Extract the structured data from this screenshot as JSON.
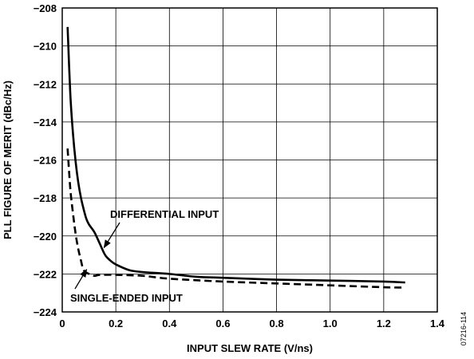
{
  "chart_data": {
    "type": "line",
    "xlabel": "INPUT SLEW RATE (V/ns)",
    "ylabel": "PLL FIGURE OF MERIT (dBc/Hz)",
    "xlim": [
      0,
      1.4
    ],
    "ylim": [
      -224,
      -208
    ],
    "xticks": [
      0,
      0.2,
      0.4,
      0.6,
      0.8,
      1.0,
      1.2,
      1.4
    ],
    "xtick_labels": [
      "0",
      "0.2",
      "0.4",
      "0.6",
      "0.8",
      "1.0",
      "1.2",
      "1.4"
    ],
    "yticks": [
      -224,
      -222,
      -220,
      -218,
      -216,
      -214,
      -212,
      -210,
      -208
    ],
    "ytick_labels": [
      "−224",
      "−222",
      "−220",
      "−218",
      "−216",
      "−214",
      "−212",
      "−210",
      "−208"
    ],
    "grid": true,
    "series": [
      {
        "name": "DIFFERENTIAL INPUT",
        "style": "solid",
        "color": "#000000",
        "x": [
          0.02,
          0.03,
          0.04,
          0.05,
          0.06,
          0.07,
          0.08,
          0.09,
          0.1,
          0.12,
          0.14,
          0.16,
          0.18,
          0.2,
          0.25,
          0.3,
          0.4,
          0.5,
          0.6,
          0.8,
          1.0,
          1.2,
          1.28
        ],
        "y": [
          -209.0,
          -212.5,
          -214.6,
          -216.1,
          -217.2,
          -218.0,
          -218.6,
          -219.1,
          -219.4,
          -219.8,
          -220.4,
          -221.0,
          -221.3,
          -221.5,
          -221.8,
          -221.9,
          -222.0,
          -222.15,
          -222.2,
          -222.3,
          -222.35,
          -222.4,
          -222.45
        ]
      },
      {
        "name": "SINGLE-ENDED INPUT",
        "style": "dashed",
        "color": "#000000",
        "x": [
          0.02,
          0.03,
          0.04,
          0.05,
          0.06,
          0.07,
          0.08,
          0.1,
          0.12,
          0.14,
          0.2,
          0.3,
          0.4,
          0.6,
          0.8,
          1.0,
          1.2,
          1.28
        ],
        "y": [
          -215.4,
          -217.5,
          -218.8,
          -219.9,
          -220.7,
          -221.3,
          -221.8,
          -222.0,
          -222.1,
          -222.05,
          -222.05,
          -222.1,
          -222.25,
          -222.4,
          -222.5,
          -222.6,
          -222.7,
          -222.72
        ]
      }
    ],
    "annotations": [
      {
        "text": "DIFFERENTIAL INPUT",
        "arrow_to": [
          0.15,
          -220.7
        ]
      },
      {
        "text": "SINGLE-ENDED INPUT",
        "arrow_to": [
          0.085,
          -221.6
        ]
      }
    ]
  },
  "figure_id": "07216-114"
}
